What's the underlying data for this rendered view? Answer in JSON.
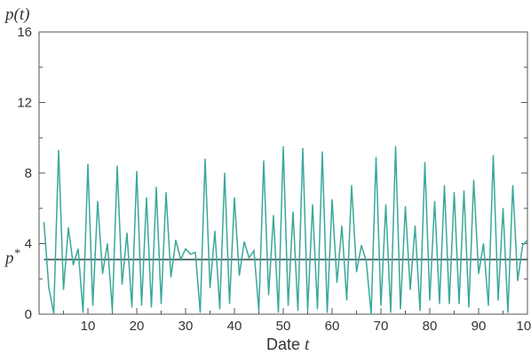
{
  "chart_data": {
    "type": "line",
    "title": "",
    "ylabel": "p(t)",
    "xlabel_prefix": "Date ",
    "xlabel_var": "t",
    "xlim": [
      0,
      100
    ],
    "ylim": [
      0,
      16
    ],
    "x_ticks": [
      10,
      20,
      30,
      40,
      50,
      60,
      70,
      80,
      90,
      100
    ],
    "y_ticks": [
      0,
      4,
      8,
      12,
      16
    ],
    "y_tick_labels": [
      "0",
      "4",
      "8",
      "12",
      "16"
    ],
    "reference_line": {
      "label": "p*",
      "value": 3.1
    },
    "series": [
      {
        "color": "#3aa89a",
        "x": [
          1,
          2,
          3,
          4,
          5,
          6,
          7,
          8,
          9,
          10,
          11,
          12,
          13,
          14,
          15,
          16,
          17,
          18,
          19,
          20,
          21,
          22,
          23,
          24,
          25,
          26,
          27,
          28,
          29,
          30,
          31,
          32,
          33,
          34,
          35,
          36,
          37,
          38,
          39,
          40,
          41,
          42,
          43,
          44,
          45,
          46,
          47,
          48,
          49,
          50,
          51,
          52,
          53,
          54,
          55,
          56,
          57,
          58,
          59,
          60,
          61,
          62,
          63,
          64,
          65,
          66,
          67,
          68,
          69,
          70,
          71,
          72,
          73,
          74,
          75,
          76,
          77,
          78,
          79,
          80,
          81,
          82,
          83,
          84,
          85,
          86,
          87,
          88,
          89,
          90,
          91,
          92,
          93,
          94,
          95,
          96,
          97,
          98,
          99,
          100
        ],
        "values": [
          5.2,
          1.5,
          0.05,
          9.3,
          1.4,
          4.9,
          2.8,
          3.7,
          0.1,
          8.5,
          0.5,
          6.4,
          2.3,
          4.0,
          0.2,
          8.4,
          1.7,
          4.6,
          0.4,
          8.1,
          0.5,
          6.6,
          0.4,
          7.2,
          0.6,
          6.9,
          2.1,
          4.2,
          3.1,
          3.7,
          3.4,
          3.5,
          0.1,
          8.8,
          1.5,
          4.7,
          0.3,
          8.0,
          0.6,
          6.6,
          2.2,
          4.1,
          3.2,
          3.6,
          0.2,
          8.7,
          1.1,
          5.6,
          0.1,
          9.5,
          0.5,
          5.8,
          0.2,
          9.4,
          0.2,
          6.2,
          0.3,
          9.2,
          0.1,
          6.5,
          1.8,
          5.0,
          0.8,
          7.3,
          2.4,
          3.9,
          3.0,
          0.0,
          8.9,
          0.5,
          6.2,
          0.1,
          9.5,
          0.3,
          6.1,
          1.4,
          5.0,
          0.2,
          8.6,
          0.8,
          6.4,
          0.6,
          7.3,
          0.6,
          6.9,
          0.6,
          7.0,
          0.4,
          7.6,
          2.3,
          4.0,
          0.5,
          9.0,
          0.8,
          6.0,
          0.1,
          7.3,
          1.9,
          3.9,
          4.2
        ]
      }
    ]
  }
}
